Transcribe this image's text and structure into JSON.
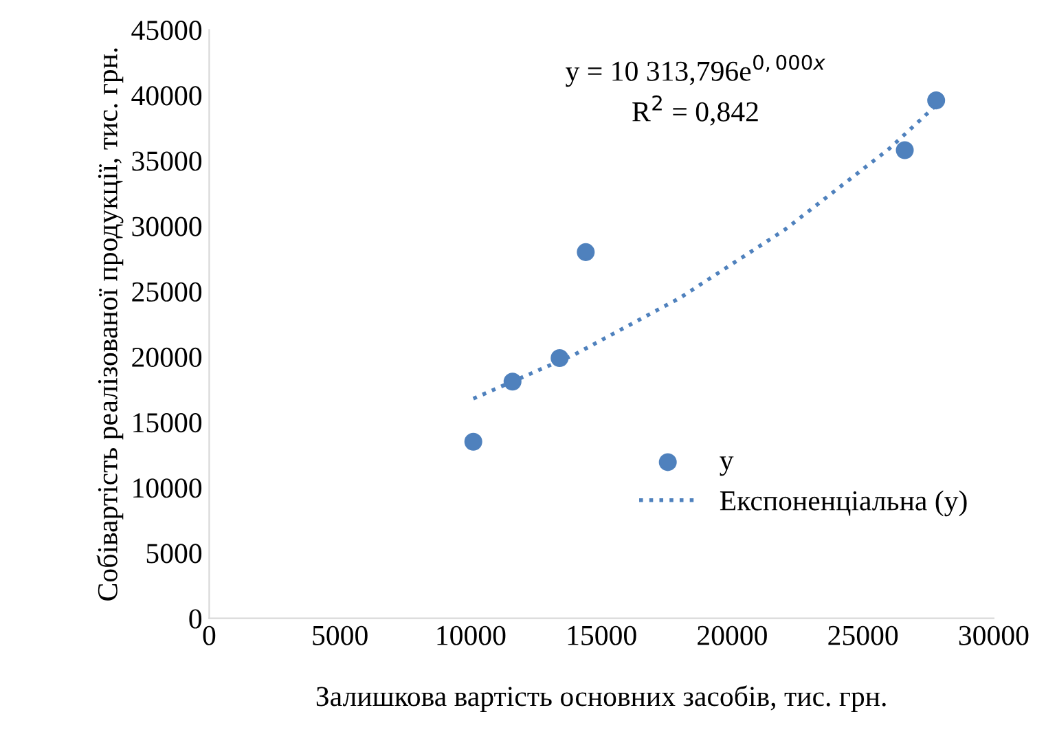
{
  "chart_data": {
    "type": "scatter",
    "xlabel": "Залишкова вартість основних засобів, тис. грн.",
    "ylabel": "Собівартість реалізованої продукції, тис. грн.",
    "xlim": [
      0,
      30000
    ],
    "xticks": [
      0,
      5000,
      10000,
      15000,
      20000,
      25000,
      30000
    ],
    "ylim": [
      0,
      45000
    ],
    "yticks": [
      0,
      5000,
      10000,
      15000,
      20000,
      25000,
      30000,
      35000,
      40000,
      45000
    ],
    "grid": false,
    "legend": "right",
    "series": [
      {
        "name": "y",
        "color": "#4f81bd",
        "marker": "circle",
        "x": [
          10100,
          11600,
          13400,
          14400,
          26600,
          27800
        ],
        "values": [
          13500,
          18100,
          19900,
          28000,
          35800,
          39600
        ]
      },
      {
        "name": "Експоненціальна (y)",
        "color": "#4f81bd",
        "type": "line",
        "line_style": "dotted",
        "marker": "none",
        "x": [
          10100,
          14000,
          18000,
          22000,
          26000,
          28000
        ],
        "values": [
          16800,
          20200,
          24500,
          29700,
          35900,
          39600
        ]
      }
    ],
    "annotations": [
      {
        "text": "y = 10 313,796e$^{0,000x}$"
      },
      {
        "text": "R$^{2}$ = 0,842"
      }
    ]
  }
}
